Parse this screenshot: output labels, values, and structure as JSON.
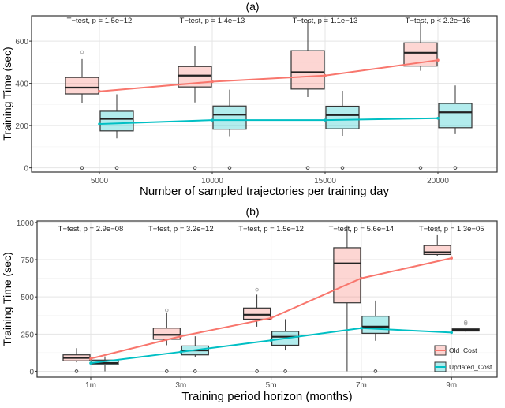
{
  "chart_data": [
    {
      "type": "box",
      "title": "(a)",
      "xlabel": "Number of sampled trajectories per training day",
      "ylabel": "Training Time (sec)",
      "categories": [
        "5000",
        "10000",
        "15000",
        "20000"
      ],
      "ylim": [
        -20,
        720
      ],
      "yticks": [
        0,
        200,
        400,
        600
      ],
      "grid": true,
      "annotations": [
        "T−test, p = 1.5e−12",
        "T−test, p = 1.4e−13",
        "T−test, p = 1.1e−13",
        "T−test, p < 2.2e−16"
      ],
      "series": [
        {
          "name": "Old_Cost",
          "color": "#F8766D",
          "boxes": [
            {
              "min": 305,
              "q1": 350,
              "median": 380,
              "q3": 428,
              "max": 515,
              "outliers": [
                548,
                0
              ]
            },
            {
              "min": 310,
              "q1": 383,
              "median": 437,
              "q3": 480,
              "max": 578,
              "outliers": [
                0
              ]
            },
            {
              "min": 335,
              "q1": 373,
              "median": 453,
              "q3": 555,
              "max": 700,
              "outliers": [
                0
              ]
            },
            {
              "min": 460,
              "q1": 482,
              "median": 545,
              "q3": 592,
              "max": 690,
              "outliers": [
                0
              ]
            }
          ],
          "means": [
            362,
            408,
            437,
            510
          ]
        },
        {
          "name": "Updated_Cost",
          "color": "#00BFC4",
          "boxes": [
            {
              "min": 140,
              "q1": 175,
              "median": 232,
              "q3": 268,
              "max": 348,
              "outliers": [
                0
              ]
            },
            {
              "min": 150,
              "q1": 183,
              "median": 252,
              "q3": 293,
              "max": 370,
              "outliers": [
                0
              ]
            },
            {
              "min": 152,
              "q1": 185,
              "median": 250,
              "q3": 292,
              "max": 365,
              "outliers": [
                0
              ]
            },
            {
              "min": 160,
              "q1": 190,
              "median": 263,
              "q3": 305,
              "max": 390,
              "outliers": [
                0
              ]
            }
          ],
          "means": [
            208,
            226,
            226,
            235
          ]
        }
      ]
    },
    {
      "type": "box",
      "title": "(b)",
      "xlabel": "Training period horizon (months)",
      "ylabel": "Training Time (sec)",
      "categories": [
        "1m",
        "3m",
        "5m",
        "7m",
        "9m"
      ],
      "ylim": [
        -40,
        1010
      ],
      "yticks": [
        0,
        250,
        500,
        750,
        1000
      ],
      "grid": true,
      "legend": "bottom-right",
      "annotations": [
        "T−test, p = 2.9e−08",
        "T−test, p = 3.2e−12",
        "T−test, p = 1.5e−12",
        "T−test, p = 5.6e−14",
        "T−test, p = 1.3e−05"
      ],
      "series": [
        {
          "name": "Old_Cost",
          "color": "#F8766D",
          "boxes": [
            {
              "min": 60,
              "q1": 70,
              "median": 90,
              "q3": 110,
              "max": 155,
              "outliers": [
                0
              ]
            },
            {
              "min": 175,
              "q1": 215,
              "median": 245,
              "q3": 290,
              "max": 390,
              "outliers": [
                410,
                0
              ]
            },
            {
              "min": 300,
              "q1": 350,
              "median": 380,
              "q3": 425,
              "max": 515,
              "outliers": [
                548,
                0
              ]
            },
            {
              "min": 0,
              "q1": 460,
              "median": 725,
              "q3": 830,
              "max": 980,
              "outliers": []
            },
            {
              "min": 775,
              "q1": 785,
              "median": 800,
              "q3": 845,
              "max": 915,
              "outliers": [
                950
              ]
            }
          ],
          "means": [
            85,
            235,
            358,
            625,
            760
          ]
        },
        {
          "name": "Updated_Cost",
          "color": "#00BFC4",
          "boxes": [
            {
              "min": 0,
              "q1": 45,
              "median": 55,
              "q3": 75,
              "max": 100,
              "outliers": []
            },
            {
              "min": 95,
              "q1": 110,
              "median": 140,
              "q3": 170,
              "max": 235,
              "outliers": [
                0
              ]
            },
            {
              "min": 140,
              "q1": 175,
              "median": 232,
              "q3": 268,
              "max": 350,
              "outliers": [
                0
              ]
            },
            {
              "min": 205,
              "q1": 255,
              "median": 300,
              "q3": 370,
              "max": 475,
              "outliers": [
                0
              ]
            },
            {
              "min": 265,
              "q1": 270,
              "median": 278,
              "q3": 285,
              "max": 285,
              "outliers": [
                320,
                330
              ]
            }
          ],
          "means": [
            55,
            130,
            208,
            290,
            260
          ]
        }
      ]
    }
  ]
}
